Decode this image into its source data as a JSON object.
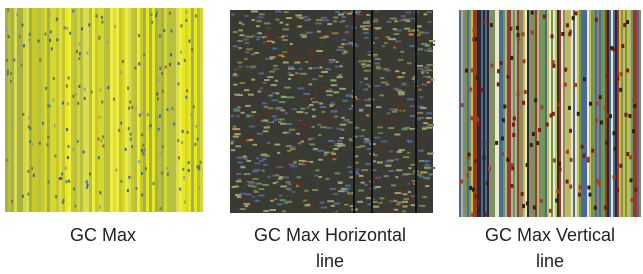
{
  "figures": [
    {
      "caption": "GC Max"
    },
    {
      "caption": "GC Max Horizontal line"
    },
    {
      "caption": "GC Max Vertical line"
    }
  ]
}
